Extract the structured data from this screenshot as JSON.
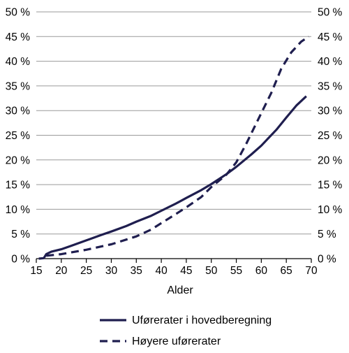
{
  "chart_data": {
    "type": "line",
    "title": "",
    "xlabel": "Alder",
    "ylabel": "",
    "xlim": [
      15,
      70
    ],
    "ylim": [
      0,
      50
    ],
    "x_ticks": [
      "15",
      "20",
      "25",
      "30",
      "35",
      "40",
      "45",
      "50",
      "55",
      "60",
      "65",
      "70"
    ],
    "y_ticks": [
      "0 %",
      "5 %",
      "10 %",
      "15 %",
      "20 %",
      "25 %",
      "30 %",
      "35 %",
      "40 %",
      "45 %",
      "50 %"
    ],
    "y_tick_values": [
      0,
      5,
      10,
      15,
      20,
      25,
      30,
      35,
      40,
      45,
      50
    ],
    "x_tick_values": [
      15,
      20,
      25,
      30,
      35,
      40,
      45,
      50,
      55,
      60,
      65,
      70
    ],
    "grid": "horizontal",
    "legend_position": "bottom",
    "series": [
      {
        "name": "Uførerater i hovedberegning",
        "style": "solid",
        "color": "#1f1e4f",
        "x": [
          15.5,
          16.5,
          17,
          18,
          20,
          22,
          25,
          28,
          30,
          33,
          35,
          38,
          40,
          43,
          45,
          48,
          50,
          53,
          55,
          58,
          60,
          63,
          65,
          67,
          69
        ],
        "y": [
          0,
          0.1,
          0.9,
          1.4,
          1.9,
          2.6,
          3.7,
          4.8,
          5.5,
          6.6,
          7.5,
          8.7,
          9.7,
          11.2,
          12.3,
          13.9,
          15.1,
          17.1,
          18.6,
          21.1,
          22.9,
          26.1,
          28.6,
          31.0,
          32.9
        ]
      },
      {
        "name": "Høyere uførerater",
        "style": "dashed",
        "color": "#1f1e4f",
        "x": [
          17,
          20,
          25,
          30,
          35,
          38,
          40,
          43,
          45,
          48,
          50,
          53,
          55,
          57,
          60,
          62,
          64,
          66,
          68,
          69.5
        ],
        "y": [
          0.6,
          0.9,
          1.8,
          2.9,
          4.5,
          5.9,
          7.2,
          9.1,
          10.4,
          12.5,
          14.5,
          17.0,
          19.5,
          23.3,
          29.5,
          33.6,
          38.5,
          41.8,
          44.0,
          45.0
        ]
      }
    ]
  }
}
